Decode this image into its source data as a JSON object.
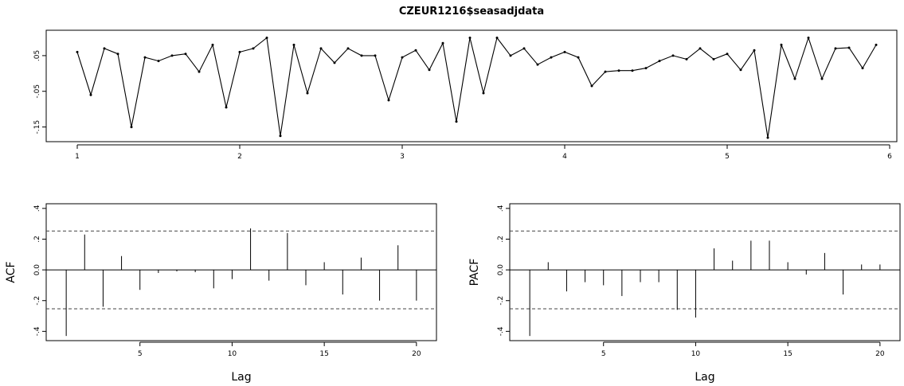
{
  "chart_data": [
    {
      "type": "line",
      "title": "CZEUR1216$seasadjdata",
      "xlabel": "",
      "ylabel": "",
      "xlim": [
        1,
        6
      ],
      "ylim": [
        -0.18,
        0.11
      ],
      "x_ticks": [
        1,
        2,
        3,
        4,
        5,
        6
      ],
      "y_ticks": [
        -0.15,
        -0.05,
        0.05
      ],
      "x_start": 1,
      "x_step": 0.08333,
      "values": [
        0.06,
        -0.06,
        0.07,
        0.055,
        -0.15,
        0.045,
        0.035,
        0.05,
        0.055,
        0.005,
        0.08,
        -0.095,
        0.06,
        0.07,
        0.1,
        -0.175,
        0.08,
        -0.055,
        0.07,
        0.03,
        0.07,
        0.05,
        0.05,
        -0.075,
        0.045,
        0.065,
        0.01,
        0.085,
        -0.135,
        0.1,
        -0.055,
        0.1,
        0.05,
        0.07,
        0.025,
        0.045,
        0.06,
        0.045,
        -0.035,
        0.005,
        0.008,
        0.008,
        0.015,
        0.035,
        0.05,
        0.04,
        0.07,
        0.04,
        0.055,
        0.01,
        0.065,
        -0.18,
        0.08,
        -0.015,
        0.1,
        -0.015,
        0.07,
        0.072,
        0.015,
        0.08
      ]
    },
    {
      "type": "bar",
      "title": "",
      "xlabel": "Lag",
      "ylabel": "ACF",
      "xlim": [
        0,
        21
      ],
      "ylim": [
        -0.45,
        0.42
      ],
      "x_ticks": [
        5,
        10,
        15,
        20
      ],
      "y_ticks": [
        -0.4,
        -0.2,
        0.0,
        0.2,
        0.4
      ],
      "ci": 0.253,
      "lags": [
        1,
        2,
        3,
        4,
        5,
        6,
        7,
        8,
        9,
        10,
        11,
        12,
        13,
        14,
        15,
        16,
        17,
        18,
        19,
        20
      ],
      "values": [
        -0.43,
        0.23,
        -0.24,
        0.09,
        -0.13,
        -0.02,
        -0.01,
        -0.015,
        -0.12,
        -0.06,
        0.27,
        -0.07,
        0.24,
        -0.1,
        0.05,
        -0.16,
        0.08,
        -0.2,
        0.16,
        -0.2
      ]
    },
    {
      "type": "bar",
      "title": "",
      "xlabel": "Lag",
      "ylabel": "PACF",
      "xlim": [
        0,
        21
      ],
      "ylim": [
        -0.45,
        0.42
      ],
      "x_ticks": [
        5,
        10,
        15,
        20
      ],
      "y_ticks": [
        -0.4,
        -0.2,
        0.0,
        0.2,
        0.4
      ],
      "ci": 0.253,
      "lags": [
        1,
        2,
        3,
        4,
        5,
        6,
        7,
        8,
        9,
        10,
        11,
        12,
        13,
        14,
        15,
        16,
        17,
        18,
        19,
        20
      ],
      "values": [
        -0.43,
        0.05,
        -0.14,
        -0.08,
        -0.1,
        -0.17,
        -0.08,
        -0.08,
        -0.26,
        -0.31,
        0.14,
        0.06,
        0.19,
        0.19,
        0.05,
        -0.03,
        0.11,
        -0.16,
        0.035,
        0.035
      ]
    }
  ]
}
